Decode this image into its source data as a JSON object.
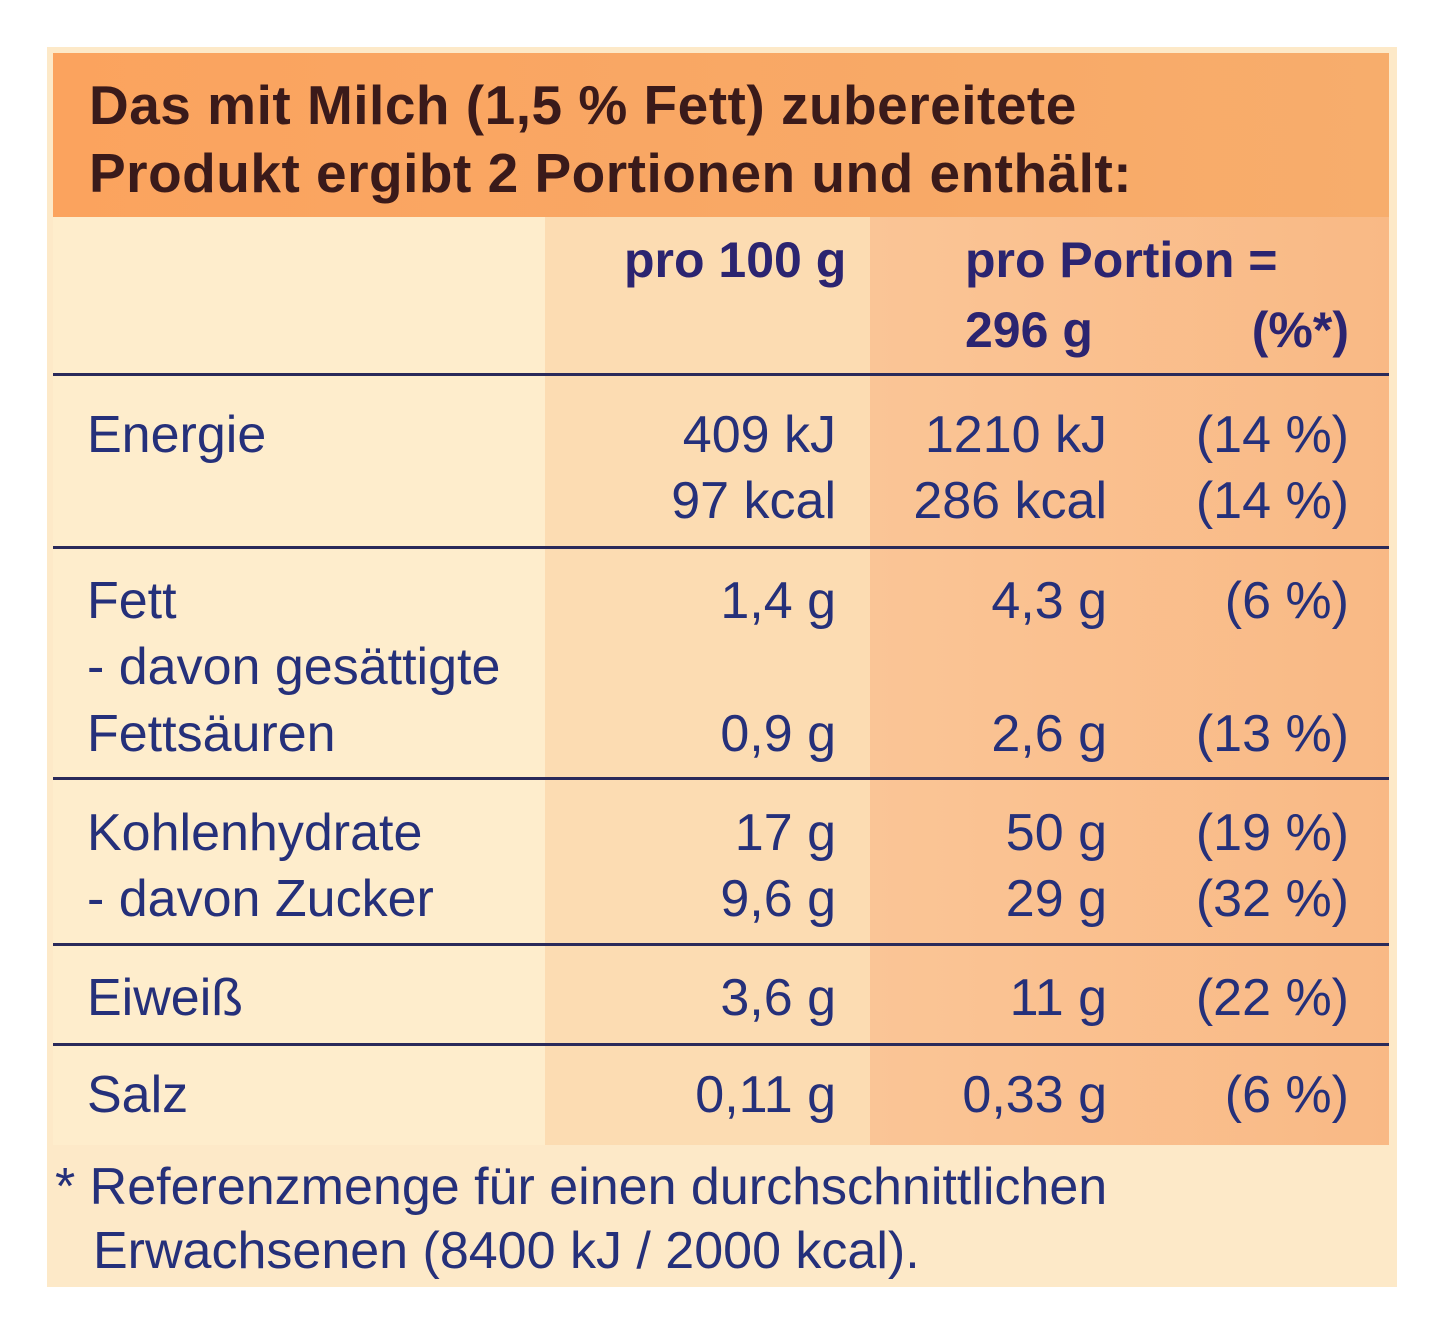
{
  "header": {
    "line1": "Das mit Milch (1,5 % Fett) zubereitete",
    "line2": "Produkt ergibt 2 Portionen und enthält:"
  },
  "columns": {
    "per100": "pro 100 g",
    "portion_line1": "pro Portion =",
    "portion_weight": "296 g",
    "percent": "(%*)"
  },
  "rows": {
    "energie": {
      "label": "Energie",
      "kj100": "409 kJ",
      "kcal100": "97 kcal",
      "kjPortion": "1210 kJ",
      "kcalPortion": "286 kcal",
      "kjPct": "(14 %)",
      "kcalPct": "(14 %)"
    },
    "fett": {
      "label": "Fett",
      "v100": "1,4 g",
      "vPortion": "4,3 g",
      "pct": "(6 %)"
    },
    "gesaettigte": {
      "label_line1": "- davon gesättigte",
      "label_line2": "Fettsäuren",
      "v100": "0,9 g",
      "vPortion": "2,6 g",
      "pct": "(13 %)"
    },
    "kohlenhydrate": {
      "label": "Kohlenhydrate",
      "v100": "17 g",
      "vPortion": "50 g",
      "pct": "(19 %)"
    },
    "zucker": {
      "label": "- davon Zucker",
      "v100": "9,6 g",
      "vPortion": "29 g",
      "pct": "(32 %)"
    },
    "eiweiss": {
      "label": "Eiweiß",
      "v100": "3,6 g",
      "vPortion": "11 g",
      "pct": "(22 %)"
    },
    "salz": {
      "label": "Salz",
      "v100": "0,11 g",
      "vPortion": "0,33 g",
      "pct": "(6 %)"
    }
  },
  "footnote": {
    "line1": "* Referenzmenge für einen durchschnittlichen",
    "line2": "Erwachsenen (8400 kJ / 2000 kcal)."
  }
}
